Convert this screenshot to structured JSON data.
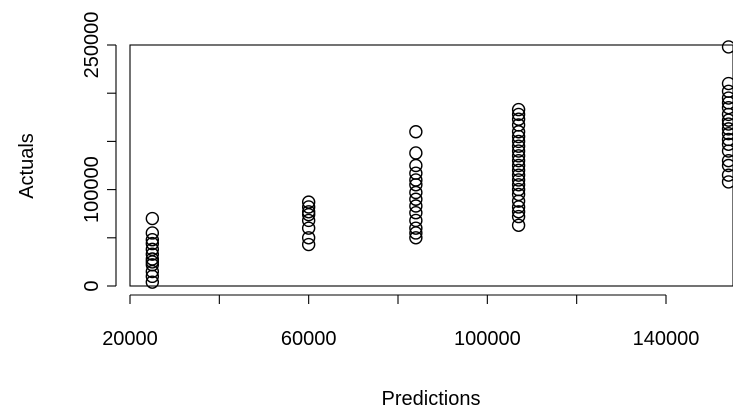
{
  "chart_data": {
    "type": "scatter",
    "title": "",
    "xlabel": "Predictions",
    "ylabel": "Actuals",
    "xlim": [
      20000,
      155000
    ],
    "ylim": [
      0,
      250000
    ],
    "x_ticks": [
      20000,
      40000,
      60000,
      80000,
      100000,
      120000,
      140000
    ],
    "x_tick_labels": [
      {
        "value": 20000,
        "label": "20000"
      },
      {
        "value": 60000,
        "label": "60000"
      },
      {
        "value": 100000,
        "label": "100000"
      },
      {
        "value": 140000,
        "label": "140000"
      }
    ],
    "y_ticks": [
      0,
      50000,
      100000,
      150000,
      200000,
      250000
    ],
    "y_tick_labels": [
      {
        "value": 0,
        "label": "0"
      },
      {
        "value": 100000,
        "label": "100000"
      },
      {
        "value": 250000,
        "label": "250000"
      }
    ],
    "grid": false,
    "series": [
      {
        "points": [
          [
            25000,
            70000
          ],
          [
            25000,
            55000
          ],
          [
            25000,
            48000
          ],
          [
            25000,
            44000
          ],
          [
            25000,
            38000
          ],
          [
            25000,
            33000
          ],
          [
            25000,
            28000
          ],
          [
            25000,
            25000
          ],
          [
            25000,
            22000
          ],
          [
            25000,
            15000
          ],
          [
            25000,
            10000
          ],
          [
            25000,
            4000
          ],
          [
            60000,
            87000
          ],
          [
            60000,
            82000
          ],
          [
            60000,
            77000
          ],
          [
            60000,
            74000
          ],
          [
            60000,
            68000
          ],
          [
            60000,
            60000
          ],
          [
            60000,
            50000
          ],
          [
            60000,
            43000
          ],
          [
            84000,
            160000
          ],
          [
            84000,
            138000
          ],
          [
            84000,
            125000
          ],
          [
            84000,
            117000
          ],
          [
            84000,
            110000
          ],
          [
            84000,
            105000
          ],
          [
            84000,
            97000
          ],
          [
            84000,
            90000
          ],
          [
            84000,
            83000
          ],
          [
            84000,
            76000
          ],
          [
            84000,
            68000
          ],
          [
            84000,
            60000
          ],
          [
            84000,
            55000
          ],
          [
            84000,
            50000
          ],
          [
            107000,
            183000
          ],
          [
            107000,
            178000
          ],
          [
            107000,
            173000
          ],
          [
            107000,
            167000
          ],
          [
            107000,
            160000
          ],
          [
            107000,
            155000
          ],
          [
            107000,
            150000
          ],
          [
            107000,
            145000
          ],
          [
            107000,
            140000
          ],
          [
            107000,
            135000
          ],
          [
            107000,
            130000
          ],
          [
            107000,
            125000
          ],
          [
            107000,
            120000
          ],
          [
            107000,
            115000
          ],
          [
            107000,
            110000
          ],
          [
            107000,
            105000
          ],
          [
            107000,
            100000
          ],
          [
            107000,
            95000
          ],
          [
            107000,
            88000
          ],
          [
            107000,
            82000
          ],
          [
            107000,
            77000
          ],
          [
            107000,
            72000
          ],
          [
            107000,
            63000
          ],
          [
            154000,
            248000
          ],
          [
            154000,
            210000
          ],
          [
            154000,
            202000
          ],
          [
            154000,
            195000
          ],
          [
            154000,
            190000
          ],
          [
            154000,
            185000
          ],
          [
            154000,
            178000
          ],
          [
            154000,
            172000
          ],
          [
            154000,
            168000
          ],
          [
            154000,
            163000
          ],
          [
            154000,
            158000
          ],
          [
            154000,
            152000
          ],
          [
            154000,
            147000
          ],
          [
            154000,
            140000
          ],
          [
            154000,
            130000
          ],
          [
            154000,
            125000
          ],
          [
            154000,
            115000
          ],
          [
            154000,
            108000
          ]
        ]
      }
    ]
  }
}
